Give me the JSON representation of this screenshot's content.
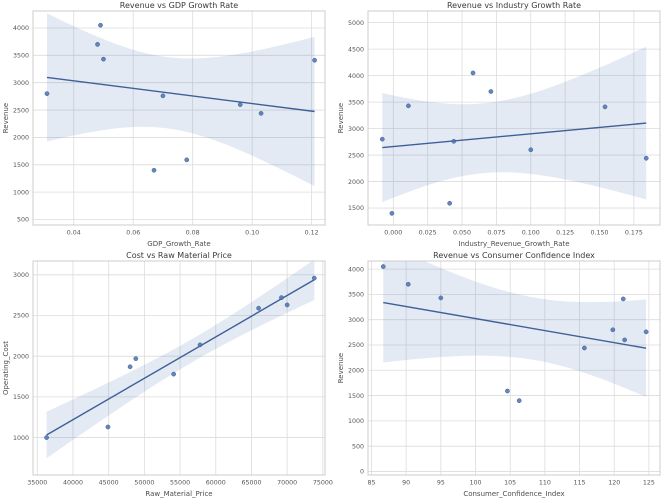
{
  "figure_title": "",
  "style": {
    "accent": "#4c72b0",
    "line_color": "#3d6098",
    "band_color": "#4c72b0",
    "band_opacity": 0.15,
    "grid_color": "#dcdcdc",
    "spine_color": "#cccccc",
    "title_color": "#3a3a3a",
    "tick_color": "#555555",
    "background": "#ffffff"
  },
  "chart_data": [
    {
      "type": "scatter",
      "title": "Revenue vs GDP Growth Rate",
      "xlabel": "GDP_Growth_Rate",
      "ylabel": "Revenue",
      "regression": true,
      "confidence_interval": 95,
      "grid": true,
      "x": [
        0.031,
        0.049,
        0.048,
        0.05,
        0.067,
        0.07,
        0.078,
        0.096,
        0.103,
        0.121
      ],
      "y": [
        2800,
        4050,
        3700,
        3430,
        1400,
        2760,
        1590,
        2600,
        2440,
        3410
      ],
      "xlim": [
        0.0263,
        0.1245
      ],
      "ylim": [
        400,
        4310
      ],
      "xticks": {
        "values": [
          0.04,
          0.06,
          0.08,
          0.1,
          0.12
        ],
        "labels": [
          "0.04",
          "0.06",
          "0.08",
          "0.10",
          "0.12"
        ]
      },
      "yticks": {
        "values": [
          500,
          1000,
          1500,
          2000,
          2500,
          3000,
          3500,
          4000
        ],
        "labels": [
          "500",
          "1000",
          "1500",
          "2000",
          "2500",
          "3000",
          "3500",
          "4000"
        ]
      }
    },
    {
      "type": "scatter",
      "title": "Revenue vs Industry Growth Rate",
      "xlabel": "Industry_Revenue_Growth_Rate",
      "ylabel": "Revenue",
      "regression": true,
      "confidence_interval": 95,
      "grid": true,
      "x": [
        -0.008,
        0.058,
        0.071,
        0.011,
        -0.001,
        0.044,
        0.041,
        0.1,
        0.184,
        0.154
      ],
      "y": [
        2800,
        4050,
        3700,
        3430,
        1400,
        2760,
        1590,
        2600,
        2440,
        3410
      ],
      "xlim": [
        -0.0184,
        0.194
      ],
      "ylim": [
        1180,
        5220
      ],
      "xticks": {
        "values": [
          0.0,
          0.025,
          0.05,
          0.075,
          0.1,
          0.125,
          0.15,
          0.175
        ],
        "labels": [
          "0.000",
          "0.025",
          "0.050",
          "0.075",
          "0.100",
          "0.125",
          "0.150",
          "0.175"
        ]
      },
      "yticks": {
        "values": [
          1500,
          2000,
          2500,
          3000,
          3500,
          4000,
          4500,
          5000
        ],
        "labels": [
          "1500",
          "2000",
          "2500",
          "3000",
          "3500",
          "4000",
          "4500",
          "5000"
        ]
      }
    },
    {
      "type": "scatter",
      "title": "Cost vs Raw Material Price",
      "xlabel": "Raw_Material_Price",
      "ylabel": "Operating_Cost",
      "regression": true,
      "confidence_interval": 95,
      "grid": true,
      "x": [
        36300,
        44900,
        48000,
        48800,
        54100,
        57800,
        66000,
        69200,
        70000,
        73800
      ],
      "y": [
        1000,
        1130,
        1870,
        1970,
        1780,
        2140,
        2590,
        2720,
        2630,
        2960
      ],
      "xlim": [
        34400,
        75300
      ],
      "ylim": [
        540,
        3170
      ],
      "xticks": {
        "values": [
          35000,
          40000,
          45000,
          50000,
          55000,
          60000,
          65000,
          70000,
          75000
        ],
        "labels": [
          "35000",
          "40000",
          "45000",
          "50000",
          "55000",
          "60000",
          "65000",
          "70000",
          "75000"
        ]
      },
      "yticks": {
        "values": [
          1000,
          1500,
          2000,
          2500,
          3000
        ],
        "labels": [
          "1000",
          "1500",
          "2000",
          "2500",
          "3000"
        ]
      }
    },
    {
      "type": "scatter",
      "title": "Revenue vs Consumer Confidence Index",
      "xlabel": "Consumer_Confidence_Index",
      "ylabel": "Revenue",
      "regression": true,
      "confidence_interval": 95,
      "grid": true,
      "x": [
        119.8,
        86.7,
        90.3,
        95.0,
        106.3,
        124.6,
        104.6,
        121.5,
        115.7,
        121.3
      ],
      "y": [
        2800,
        4050,
        3700,
        3430,
        1400,
        2760,
        1590,
        2600,
        2440,
        3410
      ],
      "xlim": [
        84.5,
        126.6
      ],
      "ylim": [
        -70,
        4160
      ],
      "xticks": {
        "values": [
          85,
          90,
          95,
          100,
          105,
          110,
          115,
          120,
          125
        ],
        "labels": [
          "85",
          "90",
          "95",
          "100",
          "105",
          "110",
          "115",
          "120",
          "125"
        ]
      },
      "yticks": {
        "values": [
          0,
          500,
          1000,
          1500,
          2000,
          2500,
          3000,
          3500,
          4000
        ],
        "labels": [
          "0",
          "500",
          "1000",
          "1500",
          "2000",
          "2500",
          "3000",
          "3500",
          "4000"
        ]
      }
    }
  ]
}
